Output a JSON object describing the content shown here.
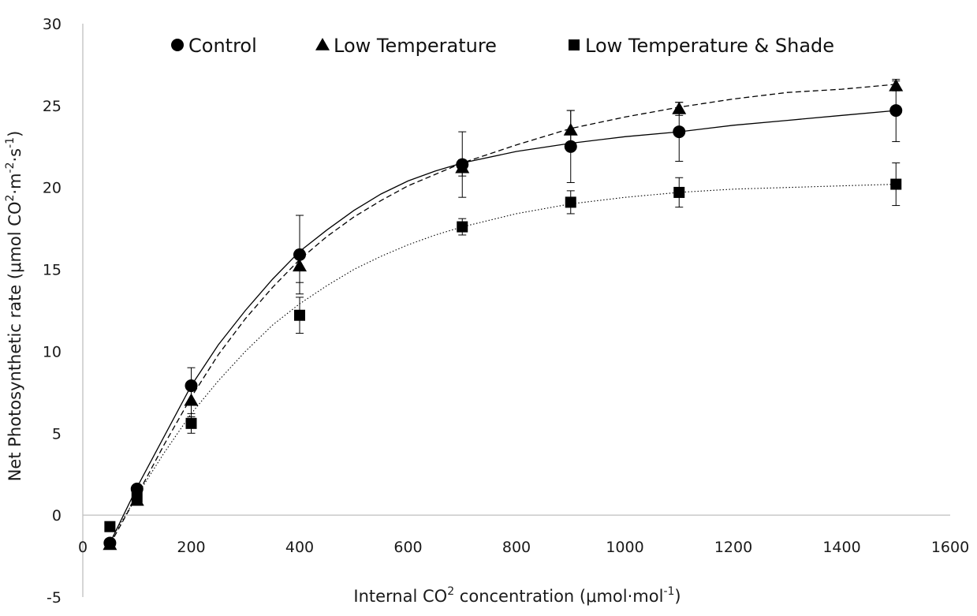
{
  "chart_data": {
    "type": "scatter",
    "title": "",
    "xlabel": {
      "pre": "Internal CO",
      "sup1": "2",
      "mid": " concentration (μmol·mol",
      "sup2": "-1",
      "post": ")"
    },
    "ylabel": {
      "pre": "Net Photosynthetic rate (μmol CO",
      "sup1": "2",
      "mid1": "·m",
      "sup2": "-2",
      "mid2": "·s",
      "sup3": "-1",
      "post": ")"
    },
    "xlim": [
      0,
      1600
    ],
    "ylim": [
      -5,
      30
    ],
    "x_ticks": [
      0,
      200,
      400,
      600,
      800,
      1000,
      1200,
      1400,
      1600
    ],
    "y_ticks": [
      -5,
      0,
      5,
      10,
      15,
      20,
      25,
      30
    ],
    "grid": false,
    "legend_position": "top",
    "series": [
      {
        "name": "Control",
        "marker": "circle",
        "line_style": "solid",
        "points": [
          {
            "x": 50,
            "y": -1.7,
            "err": 0
          },
          {
            "x": 100,
            "y": 1.6,
            "err": 0
          },
          {
            "x": 200,
            "y": 7.9,
            "err": 1.1
          },
          {
            "x": 400,
            "y": 15.9,
            "err": 2.4
          },
          {
            "x": 700,
            "y": 21.4,
            "err": 2.0
          },
          {
            "x": 900,
            "y": 22.5,
            "err": 2.2
          },
          {
            "x": 1100,
            "y": 23.4,
            "err": 1.8
          },
          {
            "x": 1500,
            "y": 24.7,
            "err": 1.9
          }
        ],
        "fit": [
          [
            50,
            -1.7
          ],
          [
            100,
            1.7
          ],
          [
            150,
            4.8
          ],
          [
            200,
            7.9
          ],
          [
            250,
            10.4
          ],
          [
            300,
            12.5
          ],
          [
            350,
            14.4
          ],
          [
            400,
            16.1
          ],
          [
            450,
            17.4
          ],
          [
            500,
            18.6
          ],
          [
            550,
            19.6
          ],
          [
            600,
            20.4
          ],
          [
            650,
            21.0
          ],
          [
            700,
            21.5
          ],
          [
            800,
            22.2
          ],
          [
            900,
            22.7
          ],
          [
            1000,
            23.1
          ],
          [
            1100,
            23.4
          ],
          [
            1200,
            23.8
          ],
          [
            1300,
            24.1
          ],
          [
            1400,
            24.4
          ],
          [
            1500,
            24.7
          ]
        ]
      },
      {
        "name": "Low Temperature",
        "marker": "triangle",
        "line_style": "dashed",
        "points": [
          {
            "x": 50,
            "y": -1.8,
            "err": 0
          },
          {
            "x": 100,
            "y": 0.9,
            "err": 0
          },
          {
            "x": 200,
            "y": 7.0,
            "err": 1.0
          },
          {
            "x": 400,
            "y": 15.2,
            "err": 1.0
          },
          {
            "x": 700,
            "y": 21.2,
            "err": 0.5
          },
          {
            "x": 900,
            "y": 23.5,
            "err": 1.2
          },
          {
            "x": 1100,
            "y": 24.8,
            "err": 0.4
          },
          {
            "x": 1500,
            "y": 26.2,
            "err": 0.3
          }
        ],
        "fit": [
          [
            50,
            -1.8
          ],
          [
            100,
            1.2
          ],
          [
            150,
            4.3
          ],
          [
            200,
            7.2
          ],
          [
            250,
            9.8
          ],
          [
            300,
            12.0
          ],
          [
            350,
            13.9
          ],
          [
            400,
            15.6
          ],
          [
            450,
            17.0
          ],
          [
            500,
            18.2
          ],
          [
            550,
            19.2
          ],
          [
            600,
            20.1
          ],
          [
            650,
            20.8
          ],
          [
            700,
            21.5
          ],
          [
            800,
            22.6
          ],
          [
            900,
            23.6
          ],
          [
            1000,
            24.3
          ],
          [
            1100,
            24.9
          ],
          [
            1200,
            25.4
          ],
          [
            1300,
            25.8
          ],
          [
            1400,
            26.0
          ],
          [
            1500,
            26.3
          ]
        ]
      },
      {
        "name": "Low Temperature & Shade",
        "marker": "square",
        "line_style": "dotted",
        "points": [
          {
            "x": 50,
            "y": -0.7,
            "err": 0
          },
          {
            "x": 100,
            "y": 1.1,
            "err": 0
          },
          {
            "x": 200,
            "y": 5.6,
            "err": 0.6
          },
          {
            "x": 400,
            "y": 12.2,
            "err": 1.1
          },
          {
            "x": 700,
            "y": 17.6,
            "err": 0.5
          },
          {
            "x": 900,
            "y": 19.1,
            "err": 0.7
          },
          {
            "x": 1100,
            "y": 19.7,
            "err": 0.9
          },
          {
            "x": 1500,
            "y": 20.2,
            "err": 1.3
          }
        ],
        "fit": [
          [
            50,
            -1.6
          ],
          [
            100,
            1.2
          ],
          [
            150,
            3.8
          ],
          [
            200,
            6.2
          ],
          [
            250,
            8.2
          ],
          [
            300,
            10.0
          ],
          [
            350,
            11.6
          ],
          [
            400,
            12.9
          ],
          [
            450,
            14.0
          ],
          [
            500,
            15.0
          ],
          [
            550,
            15.8
          ],
          [
            600,
            16.5
          ],
          [
            650,
            17.1
          ],
          [
            700,
            17.6
          ],
          [
            800,
            18.4
          ],
          [
            900,
            19.0
          ],
          [
            1000,
            19.4
          ],
          [
            1100,
            19.7
          ],
          [
            1200,
            19.9
          ],
          [
            1300,
            20.0
          ],
          [
            1400,
            20.1
          ],
          [
            1500,
            20.2
          ]
        ]
      }
    ]
  }
}
